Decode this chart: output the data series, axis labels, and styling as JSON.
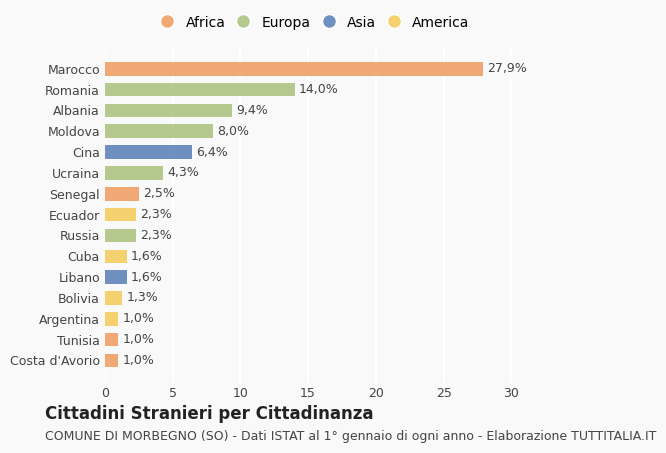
{
  "countries": [
    "Marocco",
    "Romania",
    "Albania",
    "Moldova",
    "Cina",
    "Ucraina",
    "Senegal",
    "Ecuador",
    "Russia",
    "Cuba",
    "Libano",
    "Bolivia",
    "Argentina",
    "Tunisia",
    "Costa d'Avorio"
  ],
  "values": [
    27.9,
    14.0,
    9.4,
    8.0,
    6.4,
    4.3,
    2.5,
    2.3,
    2.3,
    1.6,
    1.6,
    1.3,
    1.0,
    1.0,
    1.0
  ],
  "labels": [
    "27,9%",
    "14,0%",
    "9,4%",
    "8,0%",
    "6,4%",
    "4,3%",
    "2,5%",
    "2,3%",
    "2,3%",
    "1,6%",
    "1,6%",
    "1,3%",
    "1,0%",
    "1,0%",
    "1,0%"
  ],
  "continents": [
    "Africa",
    "Europa",
    "Europa",
    "Europa",
    "Asia",
    "Europa",
    "Africa",
    "America",
    "Europa",
    "America",
    "Asia",
    "America",
    "America",
    "Africa",
    "Africa"
  ],
  "continent_colors": {
    "Africa": "#F0A875",
    "Europa": "#B5C98E",
    "Asia": "#6E8FBF",
    "America": "#F5D06E"
  },
  "legend_order": [
    "Africa",
    "Europa",
    "Asia",
    "America"
  ],
  "xlim": [
    0,
    31
  ],
  "xticks": [
    0,
    5,
    10,
    15,
    20,
    25,
    30
  ],
  "title": "Cittadini Stranieri per Cittadinanza",
  "subtitle": "COMUNE DI MORBEGNO (SO) - Dati ISTAT al 1° gennaio di ogni anno - Elaborazione TUTTITALIA.IT",
  "background_color": "#f9f9f9",
  "grid_color": "#ffffff",
  "bar_height": 0.65,
  "title_fontsize": 12,
  "subtitle_fontsize": 9,
  "label_fontsize": 9,
  "tick_fontsize": 9
}
